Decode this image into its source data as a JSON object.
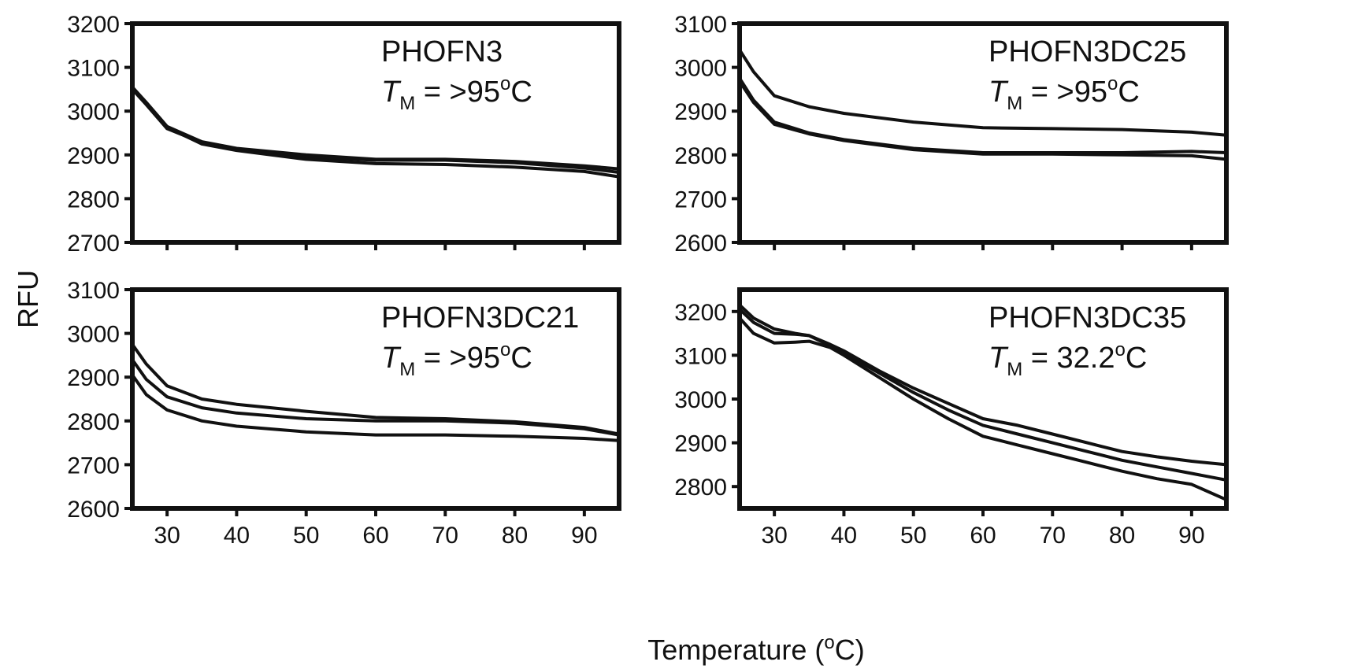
{
  "figure": {
    "ylabel": "RFU",
    "xlabel": "Temperature (°C)"
  },
  "chart_data": [
    {
      "type": "line",
      "title": "PHOFN3",
      "annotation": {
        "symbol": "T",
        "subscript": "M",
        "text": "= >95°C"
      },
      "xlim": [
        25,
        95
      ],
      "ylim": [
        2700,
        3200
      ],
      "xticks": [
        30,
        40,
        50,
        60,
        70,
        80,
        90
      ],
      "yticks": [
        2700,
        2800,
        2900,
        3000,
        3100,
        3200
      ],
      "x_tick_labels_shown": false,
      "series": [
        {
          "x": [
            25,
            27,
            30,
            35,
            40,
            50,
            60,
            70,
            80,
            90,
            95
          ],
          "y": [
            3055,
            3020,
            2965,
            2930,
            2915,
            2900,
            2890,
            2890,
            2885,
            2875,
            2868
          ]
        },
        {
          "x": [
            25,
            27,
            30,
            35,
            40,
            50,
            60,
            70,
            80,
            90,
            95
          ],
          "y": [
            3050,
            3015,
            2960,
            2928,
            2912,
            2895,
            2888,
            2888,
            2882,
            2870,
            2860
          ]
        },
        {
          "x": [
            25,
            27,
            30,
            35,
            40,
            50,
            60,
            70,
            80,
            90,
            95
          ],
          "y": [
            3052,
            3018,
            2963,
            2925,
            2910,
            2890,
            2880,
            2878,
            2872,
            2862,
            2850
          ]
        }
      ]
    },
    {
      "type": "line",
      "title": "PHOFN3DC25",
      "annotation": {
        "symbol": "T",
        "subscript": "M",
        "text": "= >95°C"
      },
      "xlim": [
        25,
        95
      ],
      "ylim": [
        2600,
        3100
      ],
      "xticks": [
        30,
        40,
        50,
        60,
        70,
        80,
        90
      ],
      "yticks": [
        2600,
        2700,
        2800,
        2900,
        3000,
        3100
      ],
      "x_tick_labels_shown": false,
      "series": [
        {
          "x": [
            25,
            27,
            30,
            35,
            40,
            50,
            60,
            70,
            80,
            90,
            95
          ],
          "y": [
            3040,
            2990,
            2935,
            2910,
            2895,
            2875,
            2862,
            2860,
            2858,
            2852,
            2845
          ]
        },
        {
          "x": [
            25,
            27,
            30,
            35,
            40,
            50,
            60,
            70,
            80,
            90,
            95
          ],
          "y": [
            2975,
            2925,
            2875,
            2850,
            2835,
            2815,
            2805,
            2805,
            2805,
            2808,
            2805
          ]
        },
        {
          "x": [
            25,
            27,
            30,
            35,
            40,
            50,
            60,
            70,
            80,
            90,
            95
          ],
          "y": [
            2968,
            2920,
            2870,
            2848,
            2833,
            2812,
            2802,
            2802,
            2800,
            2798,
            2790
          ]
        }
      ]
    },
    {
      "type": "line",
      "title": "PHOFN3DC21",
      "annotation": {
        "symbol": "T",
        "subscript": "M",
        "text": "= >95°C"
      },
      "xlim": [
        25,
        95
      ],
      "ylim": [
        2600,
        3100
      ],
      "xticks": [
        30,
        40,
        50,
        60,
        70,
        80,
        90
      ],
      "yticks": [
        2600,
        2700,
        2800,
        2900,
        3000,
        3100
      ],
      "x_tick_labels_shown": true,
      "series": [
        {
          "x": [
            25,
            27,
            30,
            35,
            40,
            50,
            60,
            70,
            80,
            90,
            95
          ],
          "y": [
            2975,
            2930,
            2880,
            2850,
            2838,
            2822,
            2808,
            2805,
            2798,
            2785,
            2770
          ]
        },
        {
          "x": [
            25,
            27,
            30,
            35,
            40,
            50,
            60,
            70,
            80,
            90,
            95
          ],
          "y": [
            2940,
            2895,
            2855,
            2830,
            2818,
            2805,
            2800,
            2800,
            2795,
            2782,
            2768
          ]
        },
        {
          "x": [
            25,
            27,
            30,
            35,
            40,
            50,
            60,
            70,
            80,
            90,
            95
          ],
          "y": [
            2905,
            2860,
            2825,
            2800,
            2788,
            2775,
            2768,
            2768,
            2765,
            2760,
            2755
          ]
        }
      ]
    },
    {
      "type": "line",
      "title": "PHOFN3DC35",
      "annotation": {
        "symbol": "T",
        "subscript": "M",
        "text": "= 32.2°C"
      },
      "xlim": [
        25,
        95
      ],
      "ylim": [
        2750,
        3250
      ],
      "xticks": [
        30,
        40,
        50,
        60,
        70,
        80,
        90
      ],
      "yticks": [
        2800,
        2900,
        3000,
        3100,
        3200
      ],
      "x_tick_labels_shown": true,
      "series": [
        {
          "x": [
            25,
            27,
            30,
            33,
            35,
            38,
            40,
            45,
            50,
            55,
            60,
            65,
            70,
            75,
            80,
            85,
            90,
            95
          ],
          "y": [
            3215,
            3185,
            3160,
            3150,
            3145,
            3125,
            3110,
            3065,
            3025,
            2990,
            2955,
            2940,
            2920,
            2900,
            2880,
            2868,
            2858,
            2850
          ]
        },
        {
          "x": [
            25,
            27,
            30,
            33,
            35,
            38,
            40,
            45,
            50,
            55,
            60,
            65,
            70,
            75,
            80,
            85,
            90,
            95
          ],
          "y": [
            3205,
            3175,
            3150,
            3148,
            3145,
            3122,
            3105,
            3060,
            3015,
            2975,
            2940,
            2920,
            2900,
            2880,
            2860,
            2845,
            2830,
            2815
          ]
        },
        {
          "x": [
            25,
            27,
            30,
            33,
            35,
            38,
            40,
            45,
            50,
            55,
            60,
            65,
            70,
            75,
            80,
            85,
            90,
            95
          ],
          "y": [
            3185,
            3150,
            3128,
            3130,
            3132,
            3118,
            3100,
            3050,
            3000,
            2955,
            2915,
            2895,
            2875,
            2855,
            2835,
            2818,
            2805,
            2770
          ]
        }
      ]
    }
  ]
}
